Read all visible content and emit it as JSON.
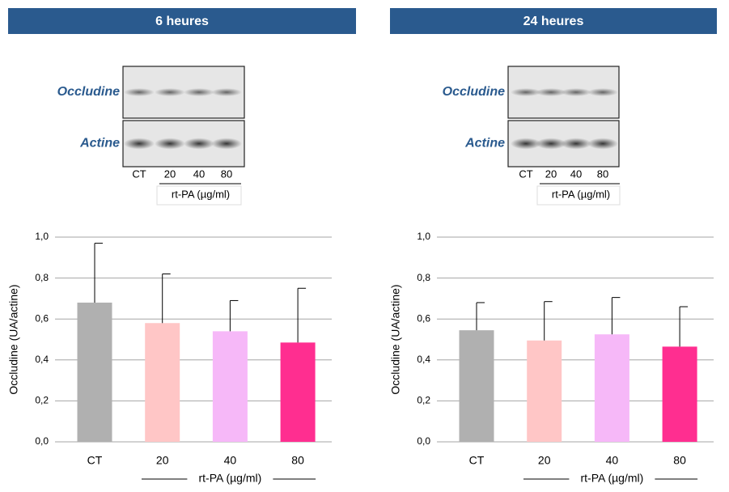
{
  "chart_data": [
    {
      "type": "bar",
      "title": "6 heures",
      "blot": {
        "rows": [
          "Occludine",
          "Actine"
        ],
        "lanes": [
          "CT",
          "20",
          "40",
          "80"
        ],
        "group_label": "rt-PA (µg/ml)"
      },
      "ylabel": "Occludine (UA/actine)",
      "xgroup_label": "rt-PA (µg/ml)",
      "categories": [
        "CT",
        "20",
        "40",
        "80"
      ],
      "values": [
        0.68,
        0.58,
        0.54,
        0.485
      ],
      "errors": [
        0.29,
        0.24,
        0.15,
        0.265
      ],
      "colors": [
        "#b0b0b0",
        "#ffc6c6",
        "#f6b8f8",
        "#ff2e90"
      ],
      "ylim": [
        0,
        1
      ],
      "yticks": [
        {
          "value": 0,
          "label": "0,0"
        },
        {
          "value": 0.2,
          "label": "0,2"
        },
        {
          "value": 0.4,
          "label": "0,4"
        },
        {
          "value": 0.6,
          "label": "0,6"
        },
        {
          "value": 0.8,
          "label": "0,8"
        },
        {
          "value": 1,
          "label": "1,0"
        }
      ],
      "grid": true
    },
    {
      "type": "bar",
      "title": "24 heures",
      "blot": {
        "rows": [
          "Occludine",
          "Actine"
        ],
        "lanes": [
          "CT",
          "20",
          "40",
          "80"
        ],
        "group_label": "rt-PA (µg/ml)"
      },
      "ylabel": "Occludine (UA/actine)",
      "xgroup_label": "rt-PA (µg/ml)",
      "categories": [
        "CT",
        "20",
        "40",
        "80"
      ],
      "values": [
        0.545,
        0.495,
        0.525,
        0.465
      ],
      "errors": [
        0.135,
        0.19,
        0.18,
        0.195
      ],
      "colors": [
        "#b0b0b0",
        "#ffc6c6",
        "#f6b8f8",
        "#ff2e90"
      ],
      "ylim": [
        0,
        1
      ],
      "yticks": [
        {
          "value": 0,
          "label": "0,0"
        },
        {
          "value": 0.2,
          "label": "0,2"
        },
        {
          "value": 0.4,
          "label": "0,4"
        },
        {
          "value": 0.6,
          "label": "0,6"
        },
        {
          "value": 0.8,
          "label": "0,8"
        },
        {
          "value": 1,
          "label": "1,0"
        }
      ],
      "grid": true
    }
  ]
}
